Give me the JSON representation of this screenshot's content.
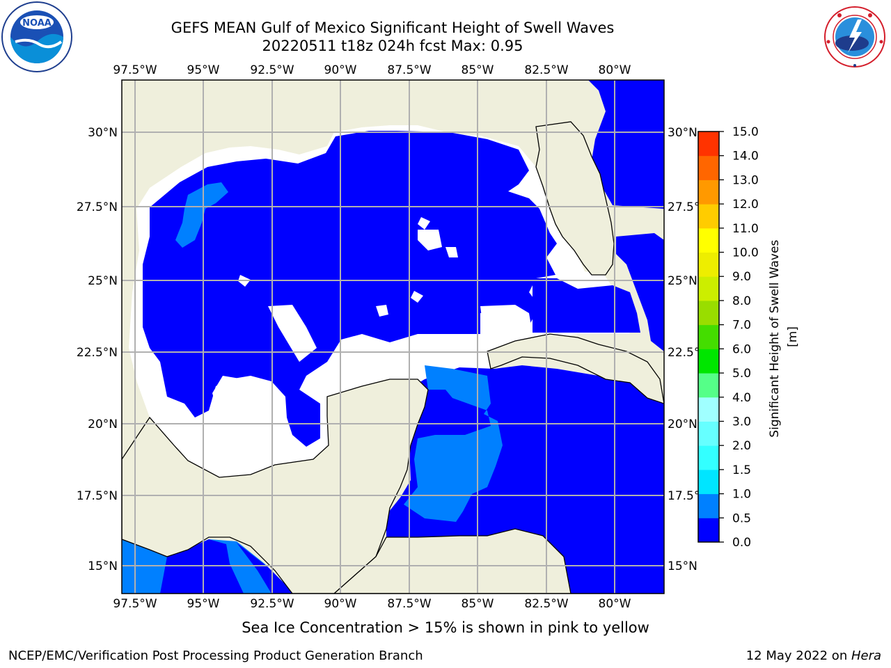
{
  "title": "GEFS MEAN Gulf of Mexico Significant Height of Swell Waves",
  "subtitle": "20220511 t18z 024h fcst   Max: 0.95",
  "logos": {
    "left": "noaa-logo",
    "right": "national-weather-service-logo"
  },
  "map": {
    "lon_labels": [
      "97.5°W",
      "95°W",
      "92.5°W",
      "90°W",
      "87.5°W",
      "85°W",
      "82.5°W",
      "80°W"
    ],
    "lat_labels": [
      "30°N",
      "27.5°N",
      "25°N",
      "22.5°N",
      "20°N",
      "17.5°N",
      "15°N"
    ],
    "colors": {
      "land": "#efefdc",
      "ocean_low": "#0000ff",
      "ocean_mid": "#0080ff",
      "no_data": "#ffffff",
      "grid": "#b0b0b0"
    }
  },
  "colorbar": {
    "label": "Significant Height of Swell Waves [m]",
    "ticks": [
      "0.0",
      "0.5",
      "1.0",
      "1.5",
      "2.0",
      "3.0",
      "4.0",
      "5.0",
      "6.0",
      "7.0",
      "8.0",
      "9.0",
      "10.0",
      "11.0",
      "12.0",
      "13.0",
      "14.0",
      "15.0"
    ],
    "colors": [
      "#0000ff",
      "#0080ff",
      "#00e5ff",
      "#33ffff",
      "#66ffff",
      "#a0ffff",
      "#55ff88",
      "#00e600",
      "#44dd00",
      "#99dd00",
      "#ccee00",
      "#eeee00",
      "#ffff00",
      "#ffcc00",
      "#ff9900",
      "#ff6600",
      "#ff3300",
      "#ff0000"
    ]
  },
  "note": "Sea Ice Concentration > 15% is shown in pink to yellow",
  "footer": {
    "left": "NCEP/EMC/Verification Post Processing Product Generation Branch",
    "date": "12 May 2022 on ",
    "host": "Hera"
  }
}
